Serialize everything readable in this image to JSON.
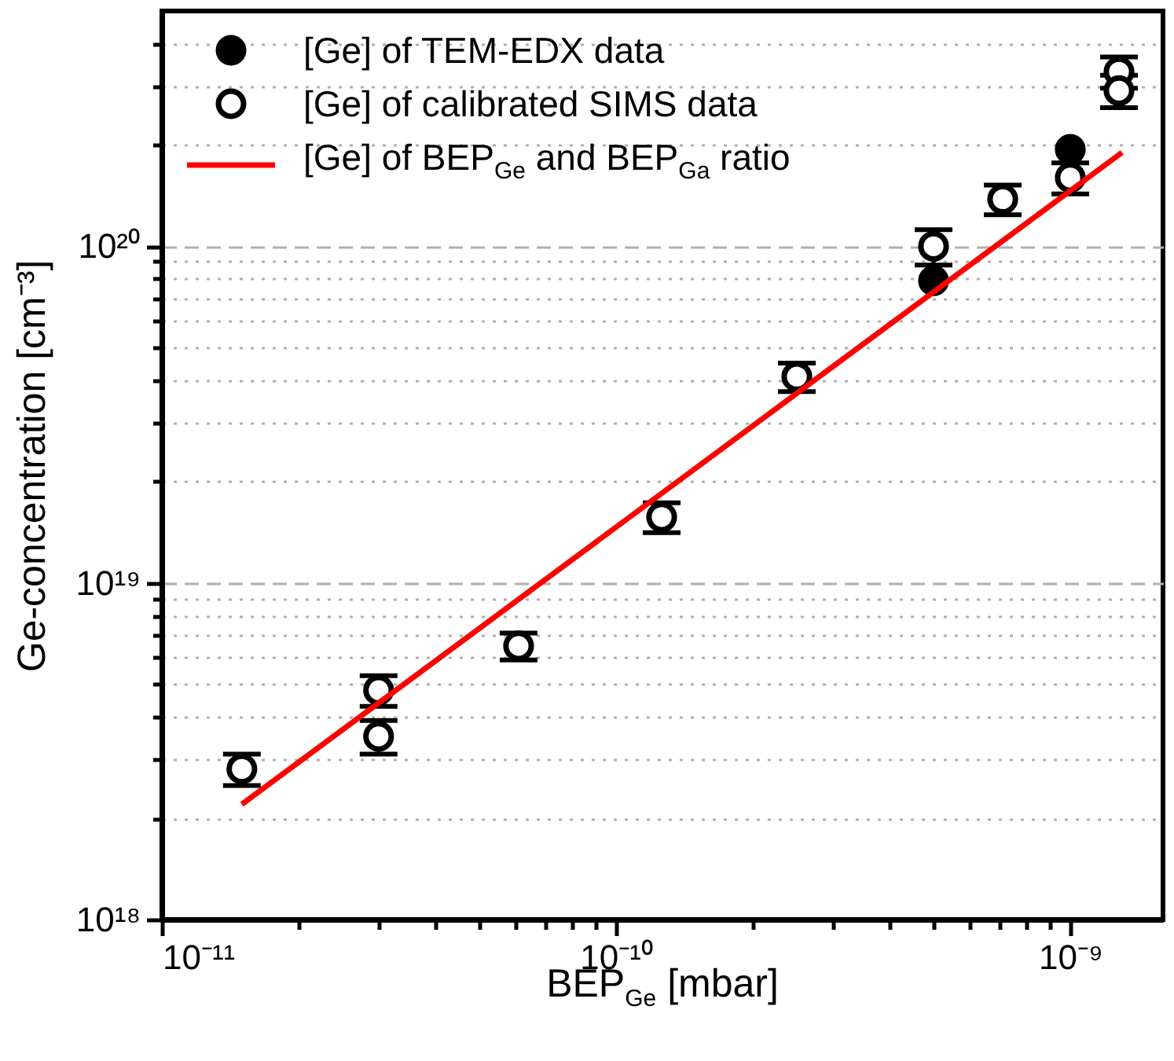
{
  "chart_data": {
    "type": "scatter",
    "xlabel": "BEP$_{Ge}$ [mbar]",
    "ylabel": "Ge-concentration [cm⁻³]",
    "log": "xy",
    "grid": "y",
    "legend": "top left",
    "xlim": [
      1e-11,
      1.6e-09
    ],
    "xticks": [
      {
        "value": 1e-11,
        "label": "10⁻¹¹"
      },
      {
        "value": 2e-11,
        "label": null
      },
      {
        "value": 3e-11,
        "label": null
      },
      {
        "value": 4e-11,
        "label": null
      },
      {
        "value": 5e-11,
        "label": null
      },
      {
        "value": 6e-11,
        "label": null
      },
      {
        "value": 7e-11,
        "label": null
      },
      {
        "value": 8e-11,
        "label": null
      },
      {
        "value": 9e-11,
        "label": null
      },
      {
        "value": 1e-10,
        "label": "10⁻¹⁰"
      },
      {
        "value": 2e-10,
        "label": null
      },
      {
        "value": 3e-10,
        "label": null
      },
      {
        "value": 4e-10,
        "label": null
      },
      {
        "value": 5e-10,
        "label": null
      },
      {
        "value": 6e-10,
        "label": null
      },
      {
        "value": 7e-10,
        "label": null
      },
      {
        "value": 8e-10,
        "label": null
      },
      {
        "value": 9e-10,
        "label": null
      },
      {
        "value": 1e-09,
        "label": "10⁻⁹"
      }
    ],
    "ylim": [
      1e+18,
      5e+20
    ],
    "yticks": [
      {
        "value": 1e+18,
        "label": "10¹⁸"
      },
      {
        "value": 2e+18,
        "label": null
      },
      {
        "value": 3e+18,
        "label": null
      },
      {
        "value": 4e+18,
        "label": null
      },
      {
        "value": 5e+18,
        "label": null
      },
      {
        "value": 6e+18,
        "label": null
      },
      {
        "value": 7e+18,
        "label": null
      },
      {
        "value": 8e+18,
        "label": null
      },
      {
        "value": 9e+18,
        "label": null
      },
      {
        "value": 1e+19,
        "label": "10¹⁹"
      },
      {
        "value": 2e+19,
        "label": null
      },
      {
        "value": 3e+19,
        "label": null
      },
      {
        "value": 4e+19,
        "label": null
      },
      {
        "value": 5e+19,
        "label": null
      },
      {
        "value": 6e+19,
        "label": null
      },
      {
        "value": 7e+19,
        "label": null
      },
      {
        "value": 8e+19,
        "label": null
      },
      {
        "value": 9e+19,
        "label": null
      },
      {
        "value": 1e+20,
        "label": "10²⁰"
      },
      {
        "value": 2e+20,
        "label": null
      },
      {
        "value": 3e+20,
        "label": null
      },
      {
        "value": 4e+20,
        "label": null
      }
    ],
    "series": [
      {
        "name": "[Ge] of TEM-EDX data",
        "marker": "circle",
        "color": "#000000",
        "x": [
          5e-10,
          1e-09
        ],
        "values": [
          7.9e+19,
          1.94e+20
        ]
      },
      {
        "name": "[Ge] of calibrated SIMS data",
        "marker": "circle",
        "color": "#000000",
        "x": [
          1.5e-11,
          3e-11,
          3e-11,
          6.1e-11,
          1.26e-10,
          2.5e-10,
          5e-10,
          7.1e-10,
          1e-09,
          1.28e-09,
          1.28e-09
        ],
        "values": [
          2.8e+18,
          4.8e+18,
          3.5e+18,
          6.5e+18,
          1.57e+19,
          4.1e+19,
          1e+20,
          1.38e+20,
          1.6e+20,
          3.3e+20,
          2.9e+20
        ],
        "errors": [
          3e+17,
          5e+17,
          4e+17,
          6e+17,
          1.6e+18,
          4e+18,
          1.2e+19,
          1.4e+19,
          1.7e+19,
          3.5e+19,
          3.2e+19
        ]
      },
      {
        "name": "[Ge] of BEP$_{Ge}$ and BEP$_{Ga}$ ratio",
        "type": "line",
        "color": "#ff0000",
        "x": [
          1.5e-11,
          1.3e-09
        ],
        "values": [
          2.2e+18,
          1.9e+20
        ]
      }
    ]
  }
}
